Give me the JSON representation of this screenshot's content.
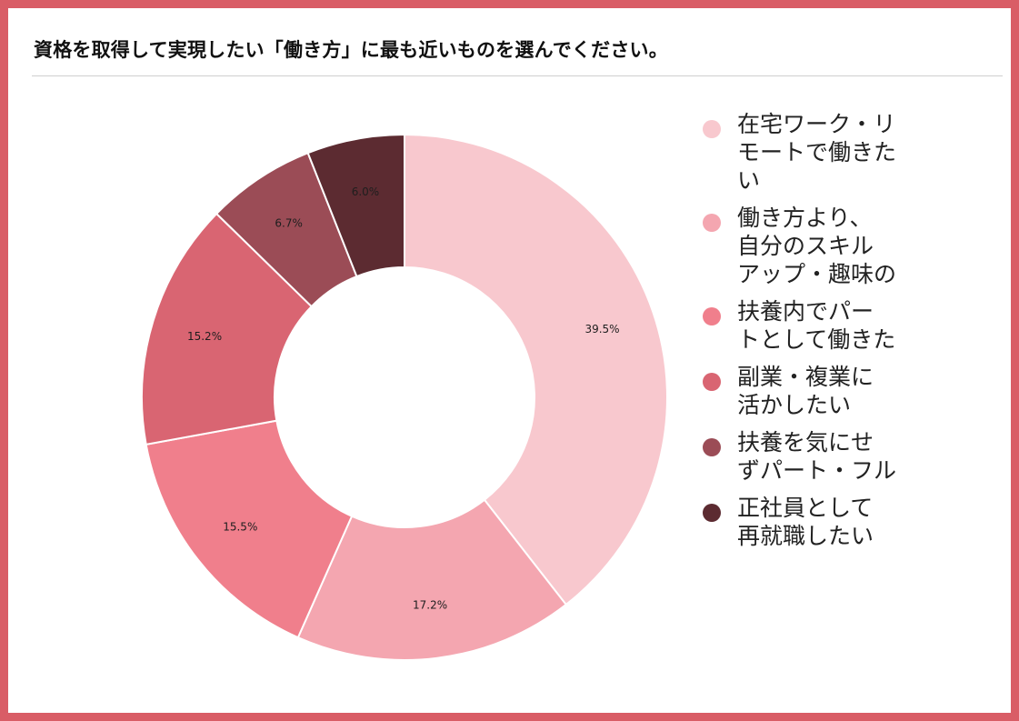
{
  "title": "資格を取得して実現したい「働き方」に最も近いものを選んでください。",
  "chart_data": {
    "type": "pie",
    "donut": true,
    "grid": false,
    "legend_position": "right",
    "series": [
      {
        "labels": [
          "在宅ワーク・リモートで働きたい",
          "働き方より、自分のスキルアップ・趣味の",
          "扶養内でパートとして働きた",
          "副業・複業に活かしたい",
          "扶養を気にせずパート・フル",
          "正社員として再就職したい"
        ],
        "values": [
          39.5,
          17.2,
          15.5,
          15.2,
          6.7,
          6.0
        ],
        "data_labels": [
          "39.5%",
          "17.2%",
          "15.5%",
          "15.2%",
          "6.7%",
          "6.0%"
        ],
        "colors": [
          "#f8c8ce",
          "#f4a6b0",
          "#f07f8c",
          "#d96572",
          "#9b4c56",
          "#5c2b31"
        ]
      }
    ]
  },
  "legend": [
    {
      "lines": [
        "在宅ワーク・リ",
        "モートで働きた",
        "い"
      ],
      "color": "#f8c8ce"
    },
    {
      "lines": [
        "働き方より、",
        "自分のスキル",
        "アップ・趣味の"
      ],
      "color": "#f4a6b0"
    },
    {
      "lines": [
        "扶養内でパー",
        "トとして働きた"
      ],
      "color": "#f07f8c"
    },
    {
      "lines": [
        "副業・複業に",
        "活かしたい"
      ],
      "color": "#d96572"
    },
    {
      "lines": [
        "扶養を気にせ",
        "ずパート・フル"
      ],
      "color": "#9b4c56"
    },
    {
      "lines": [
        "正社員として",
        "再就職したい"
      ],
      "color": "#5c2b31"
    }
  ]
}
